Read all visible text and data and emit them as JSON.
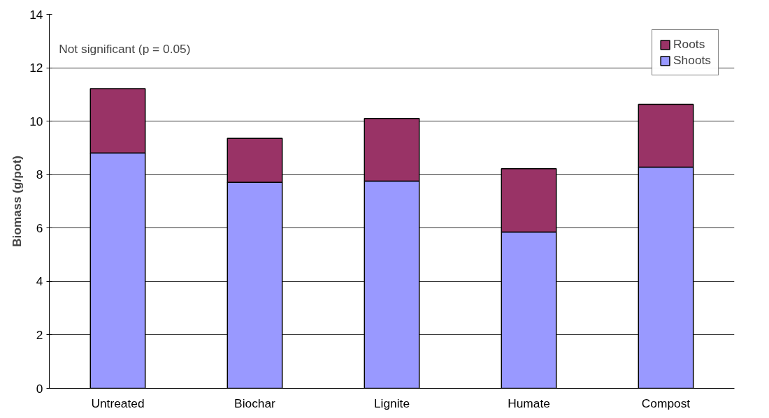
{
  "chart_data": {
    "type": "bar",
    "stacked": true,
    "ylabel": "Biomass (g/pot)",
    "categories": [
      "Untreated",
      "Biochar",
      "Lignite",
      "Humate",
      "Compost"
    ],
    "series": [
      {
        "name": "Shoots",
        "color": "#9999ff",
        "values": [
          8.81,
          7.71,
          7.76,
          5.85,
          8.28
        ]
      },
      {
        "name": "Roots",
        "color": "#993366",
        "values": [
          2.41,
          1.65,
          2.34,
          2.37,
          2.35
        ]
      }
    ],
    "ylim": [
      0,
      14
    ],
    "yticks": [
      0,
      2,
      4,
      6,
      8,
      10,
      12,
      14
    ],
    "grid": "y",
    "legend": "top right",
    "annotations": [
      "Not significant (p = 0.05)"
    ]
  }
}
